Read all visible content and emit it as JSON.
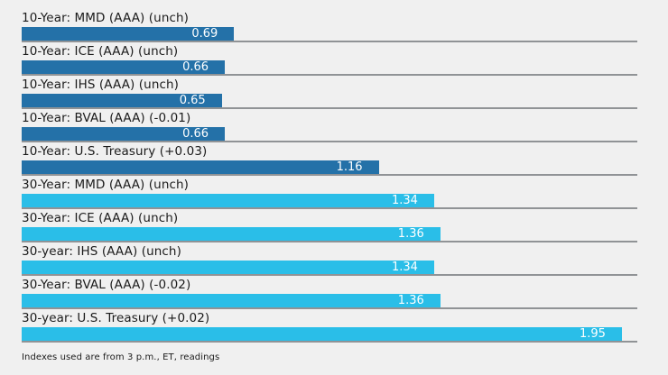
{
  "page": {
    "background_color": "#F0F0F0",
    "text_color": "#1B1B1B"
  },
  "chart_data": {
    "type": "bar",
    "orientation": "horizontal",
    "title": "",
    "xlabel": "",
    "ylabel": "",
    "xlim": [
      0,
      2.0
    ],
    "legend": "none",
    "grid": "per-row baseline under each bar, full chart width",
    "baseline_color": "#909396",
    "value_labels_inside_bars": true,
    "value_label_color": "#FFFFFF",
    "colors": {
      "ten_year": "#2471A8",
      "thirty_year": "#2ABEE8"
    },
    "bars": [
      {
        "label": "10-Year: MMD (AAA) (unch)",
        "value": 0.69,
        "value_label": "0.69",
        "series": "ten_year"
      },
      {
        "label": "10-Year: ICE (AAA) (unch)",
        "value": 0.66,
        "value_label": "0.66",
        "series": "ten_year"
      },
      {
        "label": "10-Year: IHS (AAA) (unch)",
        "value": 0.65,
        "value_label": "0.65",
        "series": "ten_year"
      },
      {
        "label": "10-Year: BVAL (AAA) (-0.01)",
        "value": 0.66,
        "value_label": "0.66",
        "series": "ten_year"
      },
      {
        "label": "10-Year: U.S. Treasury (+0.03)",
        "value": 1.16,
        "value_label": "1.16",
        "series": "ten_year"
      },
      {
        "label": "30-Year: MMD (AAA) (unch)",
        "value": 1.34,
        "value_label": "1.34",
        "series": "thirty_year"
      },
      {
        "label": "30-Year: ICE (AAA) (unch)",
        "value": 1.36,
        "value_label": "1.36",
        "series": "thirty_year"
      },
      {
        "label": "30-year: IHS (AAA) (unch)",
        "value": 1.34,
        "value_label": "1.34",
        "series": "thirty_year"
      },
      {
        "label": "30-Year: BVAL (AAA) (-0.02)",
        "value": 1.36,
        "value_label": "1.36",
        "series": "thirty_year"
      },
      {
        "label": "30-year: U.S. Treasury (+0.02)",
        "value": 1.95,
        "value_label": "1.95",
        "series": "thirty_year"
      }
    ],
    "footnote": "Indexes used are from 3 p.m., ET, readings"
  }
}
